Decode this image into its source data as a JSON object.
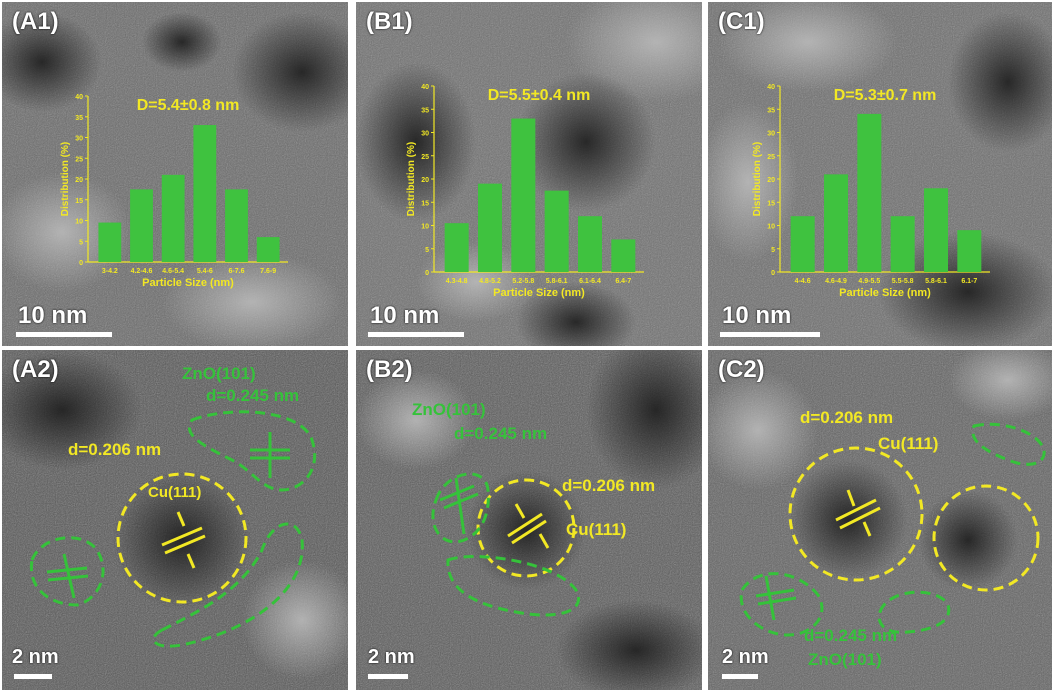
{
  "colors": {
    "yellow": "#f2e824",
    "green": "#35c23a",
    "bar": "#3fc23f"
  },
  "panels": {
    "A1": {
      "label": "(A1)",
      "scale": "10 nm",
      "chart_data": {
        "type": "bar",
        "title": "D=5.4±0.8 nm",
        "xlabel": "Particle Size (nm)",
        "ylabel": "Distribution (%)",
        "ylim": [
          0,
          40
        ],
        "yticks": [
          "0",
          "5",
          "10",
          "15",
          "20",
          "25",
          "30",
          "35",
          "40"
        ],
        "categories": [
          "3-4.2",
          "4.2-4.6",
          "4.6-5.4",
          "5.4-6",
          "6-7.6",
          "7.6-9"
        ],
        "values": [
          9.5,
          17.5,
          21,
          33,
          17.5,
          6
        ]
      }
    },
    "B1": {
      "label": "(B1)",
      "scale": "10 nm",
      "chart_data": {
        "type": "bar",
        "title": "D=5.5±0.4 nm",
        "xlabel": "Particle Size (nm)",
        "ylabel": "Distribution (%)",
        "ylim": [
          0,
          40
        ],
        "yticks": [
          "0",
          "5",
          "10",
          "15",
          "20",
          "25",
          "30",
          "35",
          "40"
        ],
        "categories": [
          "4.3-4.8",
          "4.8-5.2",
          "5.2-5.8",
          "5.8-6.1",
          "6.1-6.4",
          "6.4-7"
        ],
        "values": [
          10.5,
          19,
          33,
          17.5,
          12,
          7
        ]
      }
    },
    "C1": {
      "label": "(C1)",
      "scale": "10 nm",
      "chart_data": {
        "type": "bar",
        "title": "D=5.3±0.7 nm",
        "xlabel": "Particle Size (nm)",
        "ylabel": "Distribution (%)",
        "ylim": [
          0,
          40
        ],
        "yticks": [
          "0",
          "5",
          "10",
          "15",
          "20",
          "25",
          "30",
          "35",
          "40"
        ],
        "categories": [
          "4-4.6",
          "4.6-4.9",
          "4.9-5.5",
          "5.5-5.8",
          "5.8-6.1",
          "6.1-7"
        ],
        "values": [
          12,
          21,
          34,
          12,
          18,
          9
        ]
      }
    },
    "A2": {
      "label": "(A2)",
      "scale": "2 nm",
      "cu_label": "Cu(111)",
      "cu_d": "d=0.206 nm",
      "zno_label": "ZnO(101)",
      "zno_d": "d=0.245 nm"
    },
    "B2": {
      "label": "(B2)",
      "scale": "2 nm",
      "cu_label": "Cu(111)",
      "cu_d": "d=0.206 nm",
      "zno_label": "ZnO(101)",
      "zno_d": "d=0.245 nm"
    },
    "C2": {
      "label": "(C2)",
      "scale": "2 nm",
      "cu_label": "Cu(111)",
      "cu_d": "d=0.206 nm",
      "zno_label": "ZnO(101)",
      "zno_d": "d=0.245 nm"
    }
  }
}
